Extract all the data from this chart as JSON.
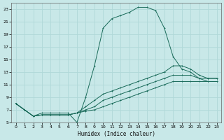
{
  "xlabel": "Humidex (Indice chaleur)",
  "bg_color": "#c8e8e8",
  "grid_color": "#b0d8d8",
  "line_color": "#1a6b5a",
  "xlim": [
    -0.5,
    23.5
  ],
  "ylim": [
    5,
    24
  ],
  "yticks": [
    5,
    7,
    9,
    11,
    13,
    15,
    17,
    19,
    21,
    23
  ],
  "xticks": [
    0,
    1,
    2,
    3,
    4,
    5,
    6,
    7,
    8,
    9,
    10,
    11,
    12,
    13,
    14,
    15,
    16,
    17,
    18,
    19,
    20,
    21,
    22,
    23
  ],
  "line1_x": [
    0,
    1,
    2,
    3,
    4,
    5,
    6,
    7,
    8,
    9,
    10,
    11,
    12,
    13,
    14,
    15,
    16,
    17,
    18,
    19,
    20,
    21,
    22,
    23
  ],
  "line1_y": [
    8,
    7,
    6,
    6.5,
    6.5,
    6.5,
    6.5,
    5,
    9,
    14,
    20,
    21.5,
    22,
    22.5,
    23.3,
    23.3,
    22.8,
    20,
    15.5,
    13.5,
    13,
    12,
    11.5,
    11.5
  ],
  "line2_x": [
    0,
    1,
    2,
    3,
    4,
    5,
    6,
    7,
    8,
    9,
    10,
    11,
    12,
    13,
    14,
    15,
    16,
    17,
    18,
    19,
    20,
    21,
    22,
    23
  ],
  "line2_y": [
    8,
    7,
    6,
    6.2,
    6.2,
    6.2,
    6.2,
    6.5,
    7.5,
    8.5,
    9.5,
    10,
    10.5,
    11,
    11.5,
    12,
    12.5,
    13,
    14,
    14,
    13.5,
    12.5,
    12,
    12
  ],
  "line3_x": [
    0,
    1,
    2,
    3,
    4,
    5,
    6,
    7,
    8,
    9,
    10,
    11,
    12,
    13,
    14,
    15,
    16,
    17,
    18,
    19,
    20,
    21,
    22,
    23
  ],
  "line3_y": [
    8,
    7,
    6,
    6.2,
    6.2,
    6.2,
    6.2,
    6.5,
    7.0,
    7.5,
    8.5,
    9,
    9.5,
    10,
    10.5,
    11,
    11.5,
    12,
    12.5,
    12.5,
    12.5,
    12,
    12,
    12
  ],
  "line4_x": [
    0,
    1,
    2,
    3,
    4,
    5,
    6,
    7,
    8,
    9,
    10,
    11,
    12,
    13,
    14,
    15,
    16,
    17,
    18,
    19,
    20,
    21,
    22,
    23
  ],
  "line4_y": [
    8,
    7,
    6,
    6.2,
    6.2,
    6.2,
    6.2,
    6.5,
    6.8,
    7.0,
    7.5,
    8,
    8.5,
    9,
    9.5,
    10,
    10.5,
    11,
    11.5,
    11.5,
    11.5,
    11.5,
    11.5,
    11.5
  ]
}
